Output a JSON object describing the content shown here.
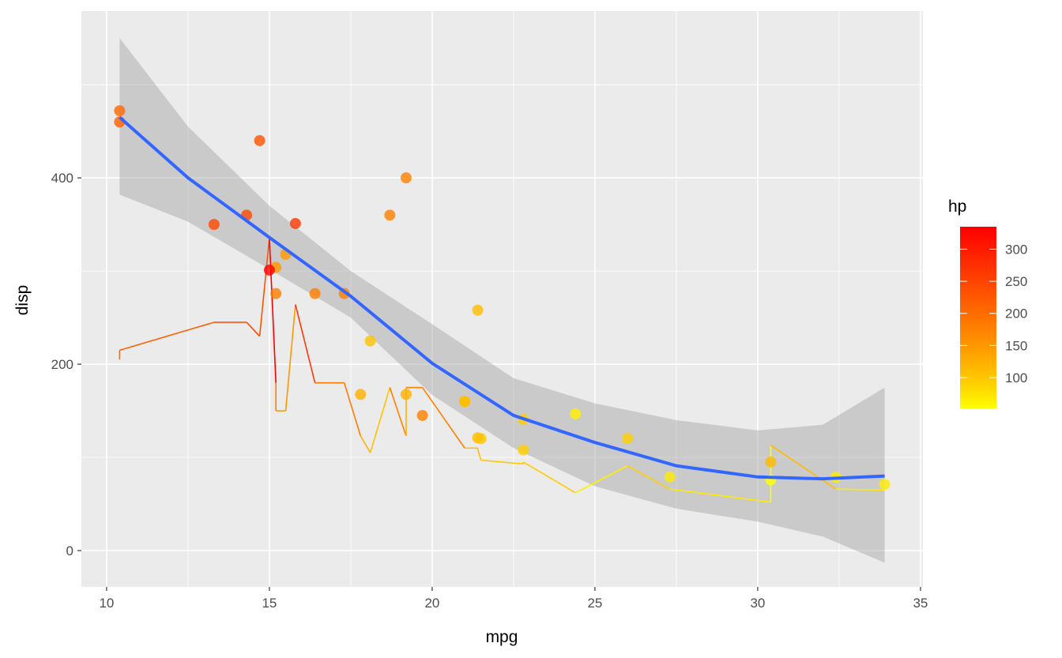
{
  "chart_data": {
    "type": "scatter",
    "title": "",
    "xlabel": "mpg",
    "ylabel": "disp",
    "xlim": [
      9.225,
      35.075
    ],
    "ylim": [
      -39,
      579
    ],
    "xticks": [
      10,
      15,
      20,
      25,
      30,
      35
    ],
    "yticks": [
      0,
      200,
      400
    ],
    "grid": true,
    "legend": {
      "title": "hp",
      "placement": "right",
      "ticks": [
        100,
        150,
        200,
        250,
        300
      ],
      "range": [
        52,
        335
      ],
      "low_color": "#FFFF00",
      "high_color": "#FF0000"
    },
    "points": [
      {
        "mpg": 21,
        "disp": 160,
        "hp": 110
      },
      {
        "mpg": 21,
        "disp": 160,
        "hp": 110
      },
      {
        "mpg": 22.8,
        "disp": 108,
        "hp": 93
      },
      {
        "mpg": 21.4,
        "disp": 258,
        "hp": 110
      },
      {
        "mpg": 18.7,
        "disp": 360,
        "hp": 175
      },
      {
        "mpg": 18.1,
        "disp": 225,
        "hp": 105
      },
      {
        "mpg": 14.3,
        "disp": 360,
        "hp": 245
      },
      {
        "mpg": 24.4,
        "disp": 146.7,
        "hp": 62
      },
      {
        "mpg": 22.8,
        "disp": 140.8,
        "hp": 95
      },
      {
        "mpg": 19.2,
        "disp": 167.6,
        "hp": 123
      },
      {
        "mpg": 17.8,
        "disp": 167.6,
        "hp": 123
      },
      {
        "mpg": 16.4,
        "disp": 275.8,
        "hp": 180
      },
      {
        "mpg": 17.3,
        "disp": 275.8,
        "hp": 180
      },
      {
        "mpg": 15.2,
        "disp": 275.8,
        "hp": 180
      },
      {
        "mpg": 10.4,
        "disp": 472,
        "hp": 205
      },
      {
        "mpg": 10.4,
        "disp": 460,
        "hp": 215
      },
      {
        "mpg": 14.7,
        "disp": 440,
        "hp": 230
      },
      {
        "mpg": 32.4,
        "disp": 78.7,
        "hp": 66
      },
      {
        "mpg": 30.4,
        "disp": 75.7,
        "hp": 52
      },
      {
        "mpg": 33.9,
        "disp": 71.1,
        "hp": 65
      },
      {
        "mpg": 21.5,
        "disp": 120.1,
        "hp": 97
      },
      {
        "mpg": 15.5,
        "disp": 318,
        "hp": 150
      },
      {
        "mpg": 15.2,
        "disp": 304,
        "hp": 150
      },
      {
        "mpg": 13.3,
        "disp": 350,
        "hp": 245
      },
      {
        "mpg": 19.2,
        "disp": 400,
        "hp": 175
      },
      {
        "mpg": 27.3,
        "disp": 79,
        "hp": 66
      },
      {
        "mpg": 26,
        "disp": 120.3,
        "hp": 91
      },
      {
        "mpg": 30.4,
        "disp": 95.1,
        "hp": 113
      },
      {
        "mpg": 15.8,
        "disp": 351,
        "hp": 264
      },
      {
        "mpg": 19.7,
        "disp": 145,
        "hp": 175
      },
      {
        "mpg": 15,
        "disp": 301,
        "hp": 335
      },
      {
        "mpg": 21.4,
        "disp": 121,
        "hp": 109
      }
    ],
    "smooth": {
      "x": [
        10.4,
        12.5,
        15,
        17.5,
        20,
        22.5,
        25,
        27.5,
        30,
        32,
        33.9
      ],
      "y": [
        465,
        400,
        336,
        273,
        201,
        145,
        116,
        91,
        79,
        77,
        80
      ],
      "ymin": [
        382,
        353,
        302,
        250,
        167,
        110,
        69,
        45,
        31,
        15,
        -13
      ],
      "ymax": [
        550,
        455,
        370,
        300,
        243,
        185,
        158,
        140,
        129,
        135,
        175
      ]
    }
  }
}
